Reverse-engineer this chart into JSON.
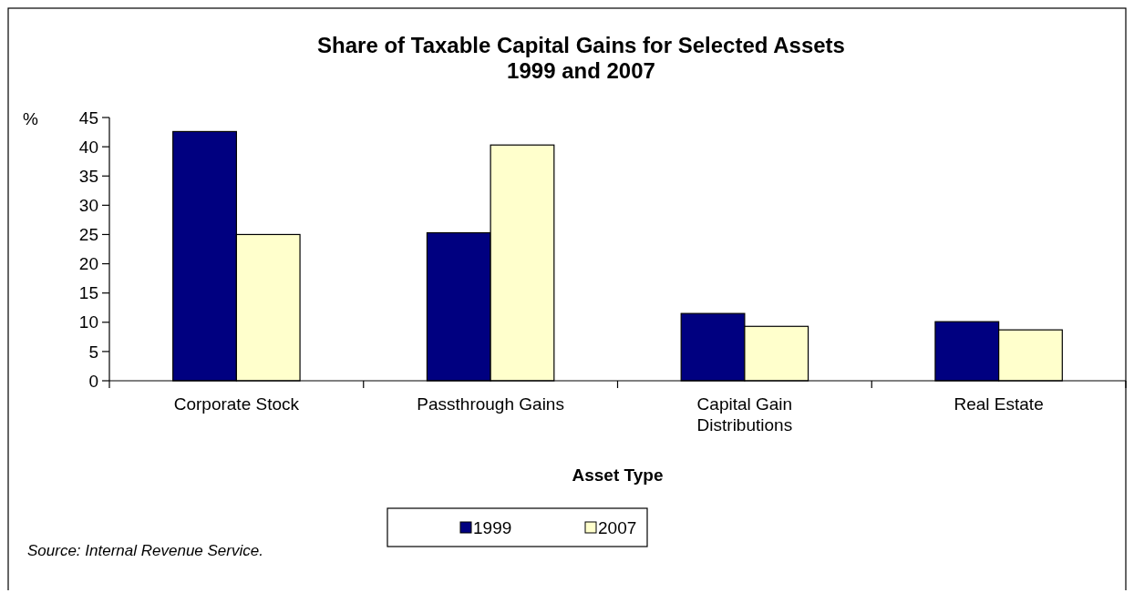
{
  "chart_data": {
    "type": "bar",
    "title": "Share of Taxable Capital Gains for Selected Assets\n1999 and 2007",
    "xlabel": "Asset Type",
    "ylabel": "%",
    "categories": [
      "Corporate Stock",
      "Passthrough Gains",
      "Capital Gain Distributions",
      "Real Estate"
    ],
    "series": [
      {
        "name": "1999",
        "color": "#000080",
        "values": [
          42.6,
          25.3,
          11.5,
          10.1
        ]
      },
      {
        "name": "2007",
        "color": "#ffffcc",
        "values": [
          25.0,
          40.3,
          9.3,
          8.7
        ]
      }
    ],
    "ylim": [
      0,
      45
    ],
    "yticks": [
      0,
      5,
      10,
      15,
      20,
      25,
      30,
      35,
      40,
      45
    ],
    "grid": false,
    "legend": "bottom",
    "annotations": [
      "Source: Internal Revenue Service."
    ]
  }
}
